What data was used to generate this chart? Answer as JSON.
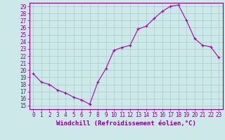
{
  "x": [
    0,
    1,
    2,
    3,
    4,
    5,
    6,
    7,
    8,
    9,
    10,
    11,
    12,
    13,
    14,
    15,
    16,
    17,
    18,
    19,
    20,
    21,
    22,
    23
  ],
  "y": [
    19.5,
    18.3,
    18.0,
    17.2,
    16.8,
    16.2,
    15.8,
    15.2,
    18.3,
    20.2,
    22.8,
    23.2,
    23.5,
    25.8,
    26.2,
    27.3,
    28.3,
    29.0,
    29.2,
    27.0,
    24.5,
    23.5,
    23.3,
    21.8
  ],
  "line_color": "#aa00aa",
  "marker": "+",
  "marker_color": "#aa00aa",
  "bg_color": "#cce8e8",
  "grid_color": "#aacccc",
  "xlabel": "Windchill (Refroidissement éolien,°C)",
  "ylabel": "",
  "ylim": [
    14.5,
    29.5
  ],
  "xlim": [
    -0.5,
    23.5
  ],
  "yticks": [
    15,
    16,
    17,
    18,
    19,
    20,
    21,
    22,
    23,
    24,
    25,
    26,
    27,
    28,
    29
  ],
  "xticks": [
    0,
    1,
    2,
    3,
    4,
    5,
    6,
    7,
    8,
    9,
    10,
    11,
    12,
    13,
    14,
    15,
    16,
    17,
    18,
    19,
    20,
    21,
    22,
    23
  ],
  "tick_color": "#880088",
  "tick_fontsize": 5.5,
  "xlabel_fontsize": 6.5,
  "spine_color": "#880088",
  "linewidth": 0.8,
  "markersize": 3.5
}
